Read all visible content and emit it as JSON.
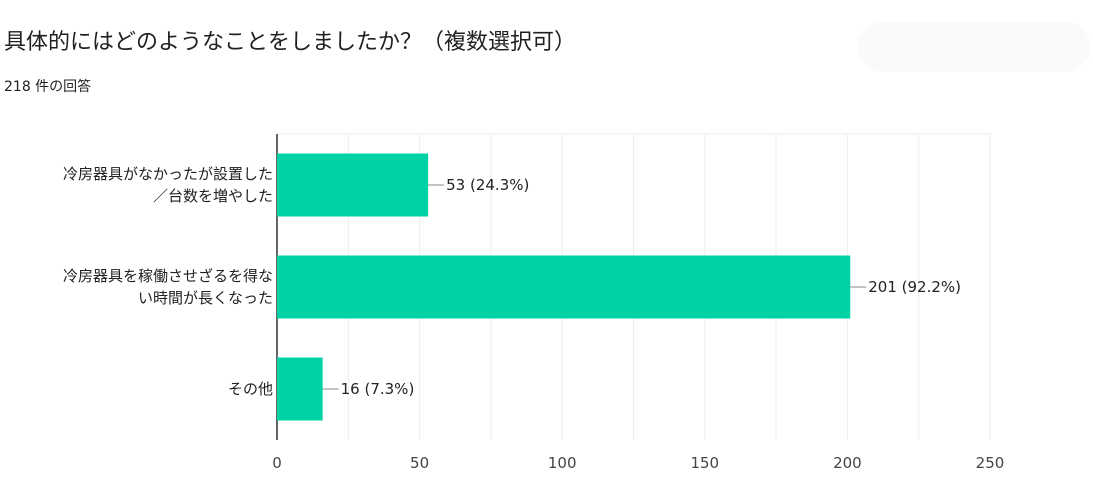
{
  "question": {
    "title": "具体的にはどのようなことをしましたか？（複数選択可）",
    "response_count": "218 件の回答"
  },
  "colors": {
    "bar": "#00d2a6",
    "grid": "#ececec",
    "axis": "#333333",
    "leader": "#8a8a8a"
  },
  "chart_data": {
    "type": "bar",
    "orientation": "horizontal",
    "categories": [
      [
        "冷房器具がなかったが設置した",
        "／台数を増やした"
      ],
      [
        "冷房器具を稼働させざるを得な",
        "い時間が長くなった"
      ],
      [
        "その他"
      ]
    ],
    "values": [
      53,
      201,
      16
    ],
    "value_labels": [
      "53 (24.3%)",
      "201 (92.2%)",
      "16 (7.3%)"
    ],
    "xlim": [
      0,
      250
    ],
    "xticks": [
      0,
      50,
      100,
      150,
      200,
      250
    ],
    "grid": true,
    "legend": "none"
  }
}
